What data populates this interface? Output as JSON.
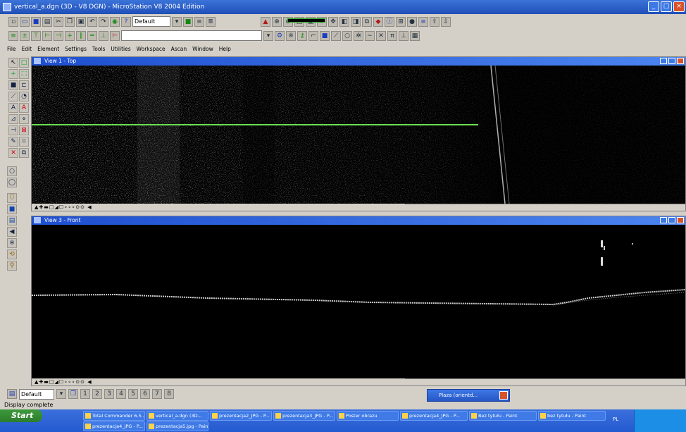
{
  "window": {
    "title": "vertical_a.dgn (3D - V8 DGN) - MicroStation V8 2004 Edition"
  },
  "toolbar": {
    "level_combo": "Default"
  },
  "menu": [
    "File",
    "Edit",
    "Element",
    "Settings",
    "Tools",
    "Utilities",
    "Workspace",
    "Ascan",
    "Window",
    "Help"
  ],
  "views": [
    {
      "title": "View 1 - Top",
      "line_color": "#6adf50"
    },
    {
      "title": "View 3 - Front"
    }
  ],
  "view_controls": "▲✚▬□◢☐∘∘∘⊙⊙ ◀",
  "footer": {
    "level_select": "Default",
    "view_buttons": [
      "1",
      "2",
      "3",
      "4",
      "5",
      "6",
      "7",
      "8"
    ]
  },
  "status": {
    "text": "Display complete"
  },
  "taskbar": {
    "start": "Start",
    "tasks_row1": [
      "Total Commander 6.5...",
      "vertical_a.dgn (3D...",
      "prezentacja2_JPG - P...",
      "prezentacja3_JPG - P...",
      "Poster obrazu",
      "prezentacja4_JPG - P...",
      "Bez tytułu - Paint",
      "bez tytułu - Paint"
    ],
    "tasks_row2": [
      "prezentacja4_JPG - P...",
      "prezentacja5.jpg - Paint"
    ],
    "popup": "Plaza (orientd...",
    "lang": "PL"
  }
}
